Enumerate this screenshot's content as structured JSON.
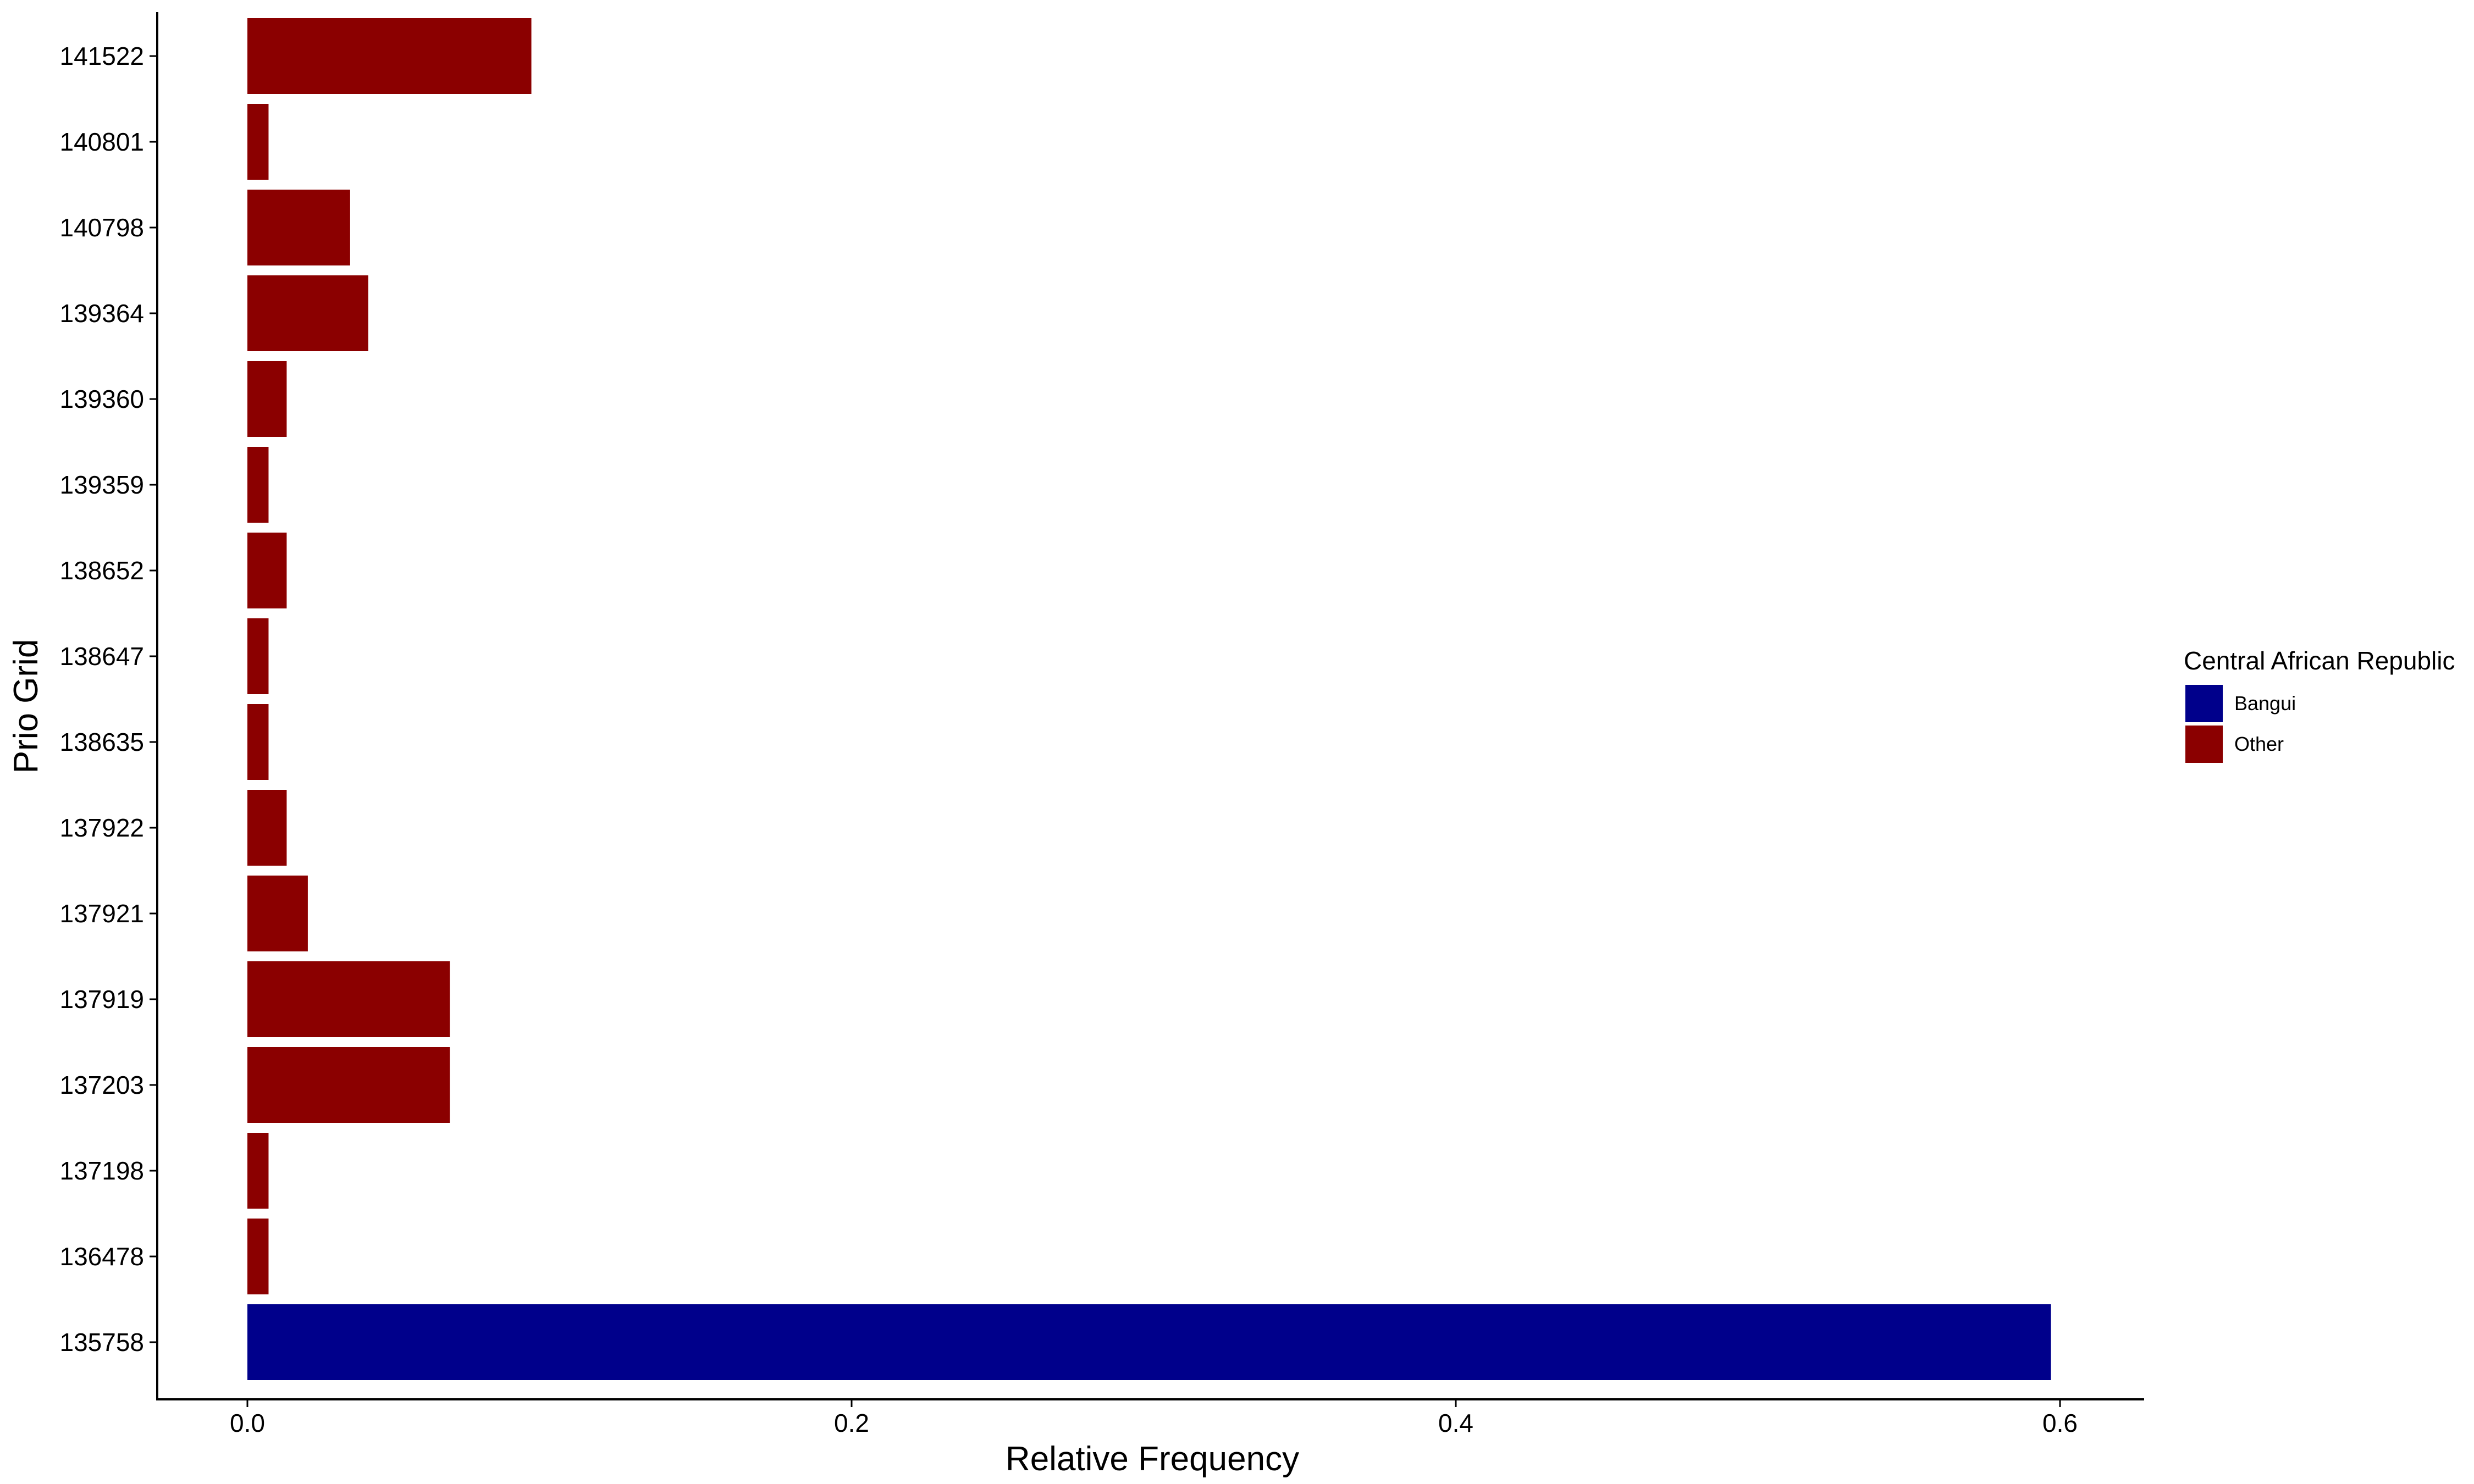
{
  "chart_data": {
    "type": "bar",
    "orientation": "horizontal",
    "title": "",
    "xlabel": "Relative Frequency",
    "ylabel": "Prio Grid",
    "xlim": [
      0,
      0.64
    ],
    "xticks": [
      0.0,
      0.2,
      0.4,
      0.6
    ],
    "xtick_labels": [
      "0.0",
      "0.2",
      "0.4",
      "0.6"
    ],
    "grid": false,
    "categories": [
      "135758",
      "136478",
      "137198",
      "137203",
      "137919",
      "137921",
      "137922",
      "138635",
      "138647",
      "138652",
      "139359",
      "139360",
      "139364",
      "140798",
      "140801",
      "141522"
    ],
    "values": [
      0.597,
      0.007,
      0.007,
      0.067,
      0.067,
      0.02,
      0.013,
      0.007,
      0.007,
      0.013,
      0.007,
      0.013,
      0.04,
      0.034,
      0.007,
      0.094
    ],
    "groups": [
      "Bangui",
      "Other",
      "Other",
      "Other",
      "Other",
      "Other",
      "Other",
      "Other",
      "Other",
      "Other",
      "Other",
      "Other",
      "Other",
      "Other",
      "Other",
      "Other"
    ],
    "legend": {
      "title": "Central African Republic",
      "placement": "right",
      "entries": [
        {
          "name": "Bangui",
          "color": "#00008B"
        },
        {
          "name": "Other",
          "color": "#8B0000"
        }
      ]
    }
  }
}
